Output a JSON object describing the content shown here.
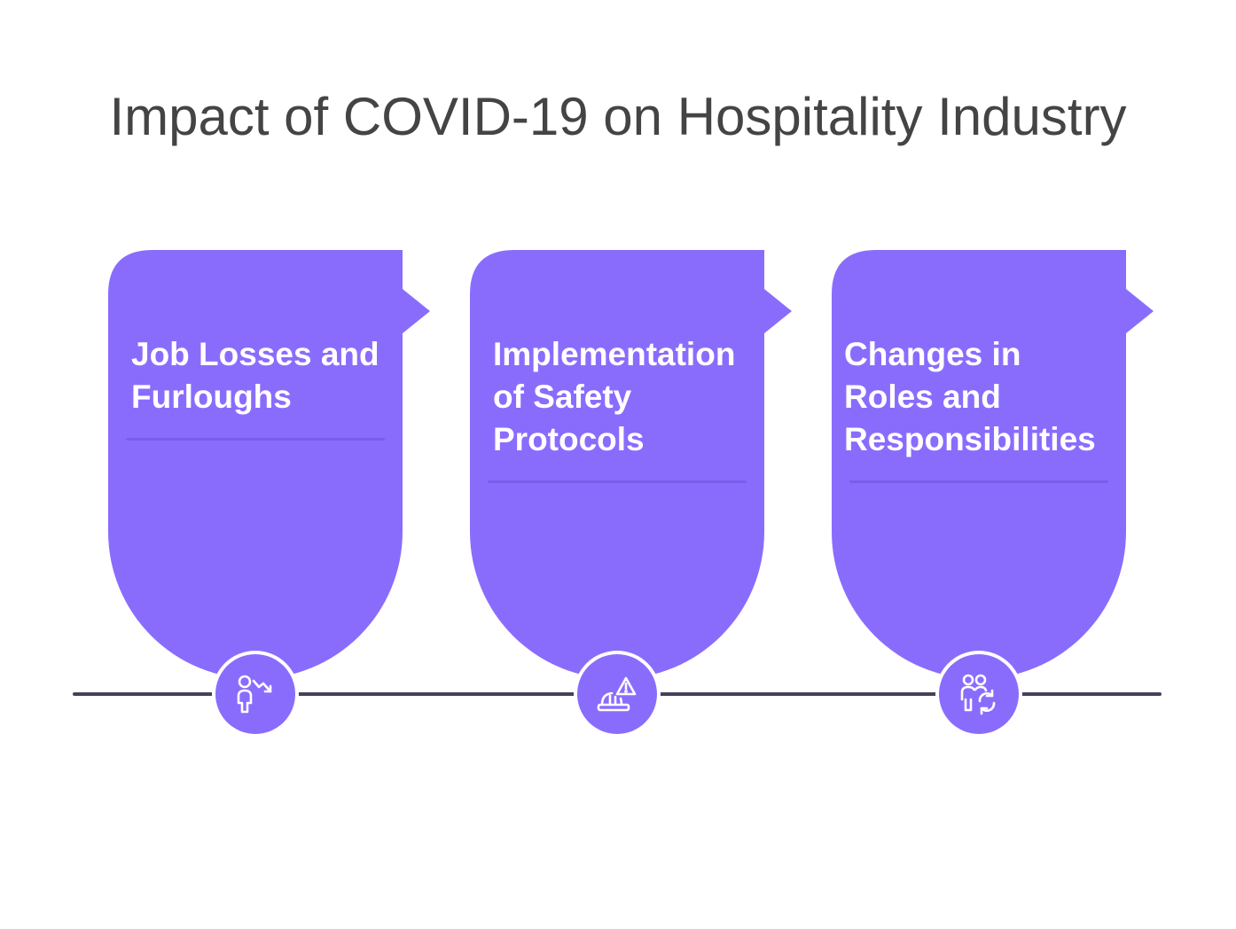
{
  "title": "Impact of COVID-19 on Hospitality Industry",
  "colors": {
    "card": "#8a6cfd",
    "divider": "#7a5ee8",
    "line": "#454159",
    "title": "#444444"
  },
  "steps": [
    {
      "label": "Job Losses and Furloughs",
      "icon": "person-downtrend-icon"
    },
    {
      "label": "Implementation of Safety Protocols",
      "icon": "hardhat-warning-icon"
    },
    {
      "label": "Changes in Roles and Responsibilities",
      "icon": "people-rotate-icon"
    }
  ]
}
